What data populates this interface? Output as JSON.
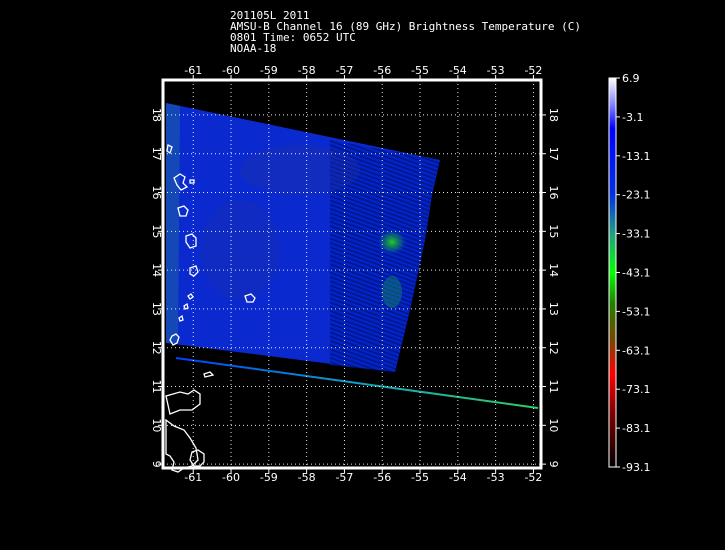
{
  "header": {
    "line1": "201105L 2011",
    "line2": "AMSU-B Channel 16 (89 GHz) Brightness Temperature (C)",
    "line3": "0801 Time: 0652 UTC",
    "line4": "NOAA-18"
  },
  "map": {
    "lon_ticks": [
      "-61",
      "-60",
      "-59",
      "-58",
      "-57",
      "-56",
      "-55",
      "-54",
      "-53",
      "-52"
    ],
    "lat_ticks": [
      "9",
      "10",
      "11",
      "12",
      "13",
      "14",
      "15",
      "16",
      "17",
      "18"
    ],
    "lon_range": [
      -61.8,
      -51.8
    ],
    "lat_range": [
      8.9,
      18.9
    ],
    "grid": "dotted white",
    "background": "#000000"
  },
  "colorbar": {
    "labels": [
      "6.9",
      "-3.1",
      "-13.1",
      "-23.1",
      "-33.1",
      "-43.1",
      "-53.1",
      "-63.1",
      "-73.1",
      "-83.1",
      "-93.1"
    ],
    "colors": [
      "#ffffff",
      "#0000ff",
      "#00ff00",
      "#ff0000",
      "#000000"
    ]
  }
}
